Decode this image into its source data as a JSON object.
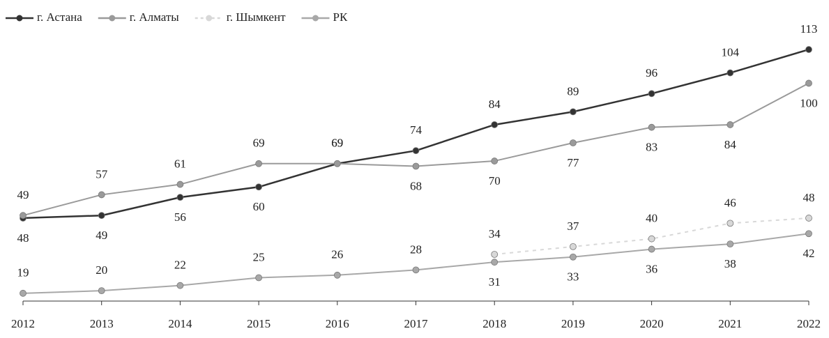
{
  "chart_data": {
    "type": "line",
    "categories": [
      "2012",
      "2013",
      "2014",
      "2015",
      "2016",
      "2017",
      "2018",
      "2019",
      "2020",
      "2021",
      "2022"
    ],
    "series": [
      {
        "name": "г. Астана",
        "color": "#333333",
        "values": [
          48,
          49,
          56,
          60,
          69,
          74,
          84,
          89,
          96,
          104,
          113
        ]
      },
      {
        "name": "г. Алматы",
        "color": "#9a9a9a",
        "values": [
          49,
          57,
          61,
          69,
          69,
          68,
          70,
          77,
          83,
          84,
          100
        ]
      },
      {
        "name": "г. Шымкент",
        "color": "#d8d8d8",
        "values": [
          null,
          null,
          null,
          null,
          null,
          null,
          34,
          37,
          40,
          46,
          48
        ]
      },
      {
        "name": "РК",
        "color": "#a8a8a8",
        "values": [
          19,
          20,
          22,
          25,
          26,
          28,
          31,
          33,
          36,
          38,
          42
        ]
      }
    ],
    "ylim": [
      16,
      120
    ],
    "legend": "top-left"
  }
}
